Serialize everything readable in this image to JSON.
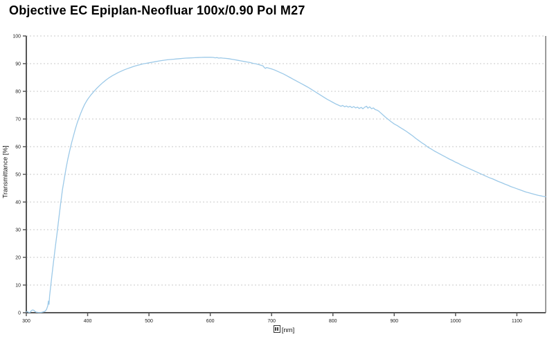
{
  "title": "Objective EC Epiplan-Neofluar 100x/0.90 Pol M27",
  "y_axis": {
    "title": "Transmittance [%]"
  },
  "x_axis": {
    "title_suffix": "[nm]",
    "missing_glyph_before_suffix": true
  },
  "colors": {
    "curve": "#9cc9e8",
    "axis": "#555555",
    "right_border": "#7a7a7a",
    "gridline": "#c9c9c9",
    "tick_label": "#222222",
    "title_text": "#000000"
  },
  "chart_data": {
    "type": "line",
    "title": "Objective EC Epiplan-Neofluar 100x/0.90 Pol M27",
    "xlabel": "[nm]",
    "ylabel": "Transmittance [%]",
    "xlim": [
      300,
      1147
    ],
    "ylim": [
      0,
      100
    ],
    "x_ticks": [
      300,
      400,
      500,
      600,
      700,
      800,
      900,
      1000,
      1100
    ],
    "y_ticks": [
      0,
      10,
      20,
      30,
      40,
      50,
      60,
      70,
      80,
      90,
      100
    ],
    "grid": "horizontal-dashed",
    "legend": "none",
    "series": [
      {
        "name": "Transmittance",
        "points": [
          [
            300,
            0.3
          ],
          [
            302,
            0.4
          ],
          [
            304,
            0.1
          ],
          [
            306,
            0.1
          ],
          [
            308,
            0.7
          ],
          [
            310,
            1.0
          ],
          [
            312,
            0.9
          ],
          [
            314,
            0.5
          ],
          [
            316,
            0.2
          ],
          [
            320,
            0.1
          ],
          [
            324,
            0.1
          ],
          [
            328,
            0.3
          ],
          [
            331,
            0.6
          ],
          [
            333,
            1.2
          ],
          [
            335,
            2.5
          ],
          [
            336,
            4.2
          ],
          [
            337,
            3.0
          ],
          [
            338,
            6.0
          ],
          [
            340,
            10
          ],
          [
            342,
            14
          ],
          [
            345,
            19.5
          ],
          [
            348,
            25
          ],
          [
            350,
            28.5
          ],
          [
            353,
            34
          ],
          [
            356,
            39.5
          ],
          [
            359,
            44.5
          ],
          [
            362,
            48.5
          ],
          [
            365,
            52.5
          ],
          [
            368,
            55.8
          ],
          [
            371,
            58.8
          ],
          [
            374,
            61.5
          ],
          [
            377,
            64
          ],
          [
            380,
            66.4
          ],
          [
            383,
            68.6
          ],
          [
            386,
            70.5
          ],
          [
            389,
            72.2
          ],
          [
            392,
            73.8
          ],
          [
            395,
            75.2
          ],
          [
            398,
            76.4
          ],
          [
            401,
            77.4
          ],
          [
            405,
            78.6
          ],
          [
            410,
            79.9
          ],
          [
            415,
            81.1
          ],
          [
            420,
            82.2
          ],
          [
            425,
            83.2
          ],
          [
            430,
            84.1
          ],
          [
            435,
            84.9
          ],
          [
            440,
            85.6
          ],
          [
            445,
            86.2
          ],
          [
            450,
            86.8
          ],
          [
            455,
            87.3
          ],
          [
            460,
            87.8
          ],
          [
            465,
            88.2
          ],
          [
            470,
            88.6
          ],
          [
            475,
            89.0
          ],
          [
            480,
            89.3
          ],
          [
            485,
            89.6
          ],
          [
            490,
            89.9
          ],
          [
            495,
            90.1
          ],
          [
            500,
            90.3
          ],
          [
            505,
            90.5
          ],
          [
            510,
            90.7
          ],
          [
            515,
            90.9
          ],
          [
            520,
            91.1
          ],
          [
            525,
            91.25
          ],
          [
            530,
            91.4
          ],
          [
            535,
            91.5
          ],
          [
            540,
            91.6
          ],
          [
            545,
            91.7
          ],
          [
            550,
            91.8
          ],
          [
            555,
            91.9
          ],
          [
            560,
            92.0
          ],
          [
            565,
            92.05
          ],
          [
            570,
            92.1
          ],
          [
            575,
            92.15
          ],
          [
            580,
            92.2
          ],
          [
            585,
            92.25
          ],
          [
            590,
            92.3
          ],
          [
            595,
            92.3
          ],
          [
            600,
            92.3
          ],
          [
            605,
            92.25
          ],
          [
            608,
            92.1
          ],
          [
            611,
            92.2
          ],
          [
            614,
            92.0
          ],
          [
            617,
            92.1
          ],
          [
            620,
            92.0
          ],
          [
            625,
            91.9
          ],
          [
            630,
            91.8
          ],
          [
            635,
            91.6
          ],
          [
            640,
            91.4
          ],
          [
            645,
            91.2
          ],
          [
            650,
            91.0
          ],
          [
            655,
            90.8
          ],
          [
            660,
            90.6
          ],
          [
            665,
            90.4
          ],
          [
            670,
            90.1
          ],
          [
            675,
            89.9
          ],
          [
            680,
            89.6
          ],
          [
            683,
            89.4
          ],
          [
            686,
            89.2
          ],
          [
            688,
            88.6
          ],
          [
            690,
            88.3
          ],
          [
            692,
            88.6
          ],
          [
            695,
            88.4
          ],
          [
            700,
            88.1
          ],
          [
            705,
            87.7
          ],
          [
            710,
            87.2
          ],
          [
            715,
            86.7
          ],
          [
            720,
            86.2
          ],
          [
            725,
            85.6
          ],
          [
            730,
            85.0
          ],
          [
            735,
            84.4
          ],
          [
            740,
            83.8
          ],
          [
            745,
            83.2
          ],
          [
            750,
            82.6
          ],
          [
            755,
            82.0
          ],
          [
            760,
            81.4
          ],
          [
            765,
            80.7
          ],
          [
            770,
            80.0
          ],
          [
            775,
            79.3
          ],
          [
            780,
            78.6
          ],
          [
            785,
            77.9
          ],
          [
            790,
            77.2
          ],
          [
            795,
            76.6
          ],
          [
            800,
            76.0
          ],
          [
            805,
            75.4
          ],
          [
            810,
            74.9
          ],
          [
            813,
            74.6
          ],
          [
            816,
            74.9
          ],
          [
            819,
            74.4
          ],
          [
            822,
            74.7
          ],
          [
            825,
            74.3
          ],
          [
            828,
            74.6
          ],
          [
            831,
            74.1
          ],
          [
            834,
            74.5
          ],
          [
            837,
            74.0
          ],
          [
            840,
            74.3
          ],
          [
            843,
            73.8
          ],
          [
            846,
            74.2
          ],
          [
            849,
            73.7
          ],
          [
            852,
            74.3
          ],
          [
            855,
            74.6
          ],
          [
            857,
            73.9
          ],
          [
            860,
            74.4
          ],
          [
            863,
            73.7
          ],
          [
            866,
            74.0
          ],
          [
            869,
            73.4
          ],
          [
            872,
            73.2
          ],
          [
            875,
            72.8
          ],
          [
            878,
            72.2
          ],
          [
            882,
            71.4
          ],
          [
            886,
            70.6
          ],
          [
            890,
            69.9
          ],
          [
            895,
            69.0
          ],
          [
            900,
            68.2
          ],
          [
            905,
            67.6
          ],
          [
            910,
            66.9
          ],
          [
            915,
            66.2
          ],
          [
            920,
            65.5
          ],
          [
            925,
            64.7
          ],
          [
            930,
            63.9
          ],
          [
            935,
            63.0
          ],
          [
            940,
            62.2
          ],
          [
            945,
            61.4
          ],
          [
            950,
            60.7
          ],
          [
            955,
            59.8
          ],
          [
            960,
            59.2
          ],
          [
            965,
            58.5
          ],
          [
            970,
            57.9
          ],
          [
            975,
            57.3
          ],
          [
            980,
            56.7
          ],
          [
            985,
            56.1
          ],
          [
            990,
            55.5
          ],
          [
            995,
            55.0
          ],
          [
            1000,
            54.4
          ],
          [
            1005,
            53.9
          ],
          [
            1010,
            53.3
          ],
          [
            1015,
            52.8
          ],
          [
            1020,
            52.3
          ],
          [
            1025,
            51.8
          ],
          [
            1030,
            51.3
          ],
          [
            1035,
            50.8
          ],
          [
            1040,
            50.3
          ],
          [
            1045,
            49.8
          ],
          [
            1050,
            49.3
          ],
          [
            1055,
            48.8
          ],
          [
            1060,
            48.4
          ],
          [
            1065,
            47.9
          ],
          [
            1070,
            47.4
          ],
          [
            1075,
            47.0
          ],
          [
            1080,
            46.5
          ],
          [
            1085,
            46.1
          ],
          [
            1090,
            45.6
          ],
          [
            1095,
            45.2
          ],
          [
            1100,
            44.8
          ],
          [
            1105,
            44.4
          ],
          [
            1110,
            44.0
          ],
          [
            1115,
            43.6
          ],
          [
            1120,
            43.3
          ],
          [
            1125,
            43.0
          ],
          [
            1130,
            42.7
          ],
          [
            1135,
            42.4
          ],
          [
            1140,
            42.2
          ],
          [
            1144,
            42.0
          ],
          [
            1147,
            41.9
          ]
        ]
      }
    ]
  }
}
